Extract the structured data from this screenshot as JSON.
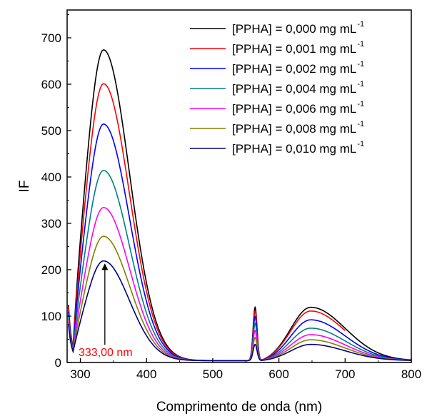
{
  "chart_data": {
    "type": "line",
    "title": "",
    "xlabel": "Comprimento de onda (nm)",
    "ylabel": "IF",
    "xlim": [
      280,
      800
    ],
    "ylim": [
      0,
      760
    ],
    "xticks": [
      300,
      400,
      500,
      600,
      700,
      800
    ],
    "yticks": [
      0,
      100,
      200,
      300,
      400,
      500,
      600,
      700
    ],
    "grid": false,
    "legend_position": "top-right",
    "series": [
      {
        "name": "[PPHA] = 0,000 mg mL",
        "unit_exponent": "-1",
        "color": "#000000",
        "peak1": 670,
        "peak2": 115,
        "peak3": 115,
        "end": 6
      },
      {
        "name": "[PPHA] = 0,001 mg mL",
        "unit_exponent": "-1",
        "color": "#ff0000",
        "peak1": 597,
        "peak2": 107,
        "peak3": 107,
        "end": 58
      },
      {
        "name": "[PPHA] = 0,002 mg mL",
        "unit_exponent": "-1",
        "color": "#0000ff",
        "peak1": 510,
        "peak2": 95,
        "peak3": 88,
        "end": 5
      },
      {
        "name": "[PPHA] = 0,004 mg mL",
        "unit_exponent": "-1",
        "color": "#008080",
        "peak1": 410,
        "peak2": 80,
        "peak3": 70,
        "end": 5
      },
      {
        "name": "[PPHA] = 0,006 mg mL",
        "unit_exponent": "-1",
        "color": "#ff00ff",
        "peak1": 330,
        "peak2": 65,
        "peak3": 56,
        "end": 4
      },
      {
        "name": "[PPHA] = 0,008 mg mL",
        "unit_exponent": "-1",
        "color": "#808000",
        "peak1": 268,
        "peak2": 50,
        "peak3": 45,
        "end": 4
      },
      {
        "name": "[PPHA] = 0,010 mg mL",
        "unit_exponent": "-1",
        "color": "#000080",
        "peak1": 215,
        "peak2": 35,
        "peak3": 35,
        "end": 4
      }
    ],
    "annotation": {
      "text": "333,00 nm",
      "color": "#ff0000",
      "x": 337,
      "arrow_from_y": 38,
      "arrow_to_y": 212
    }
  }
}
